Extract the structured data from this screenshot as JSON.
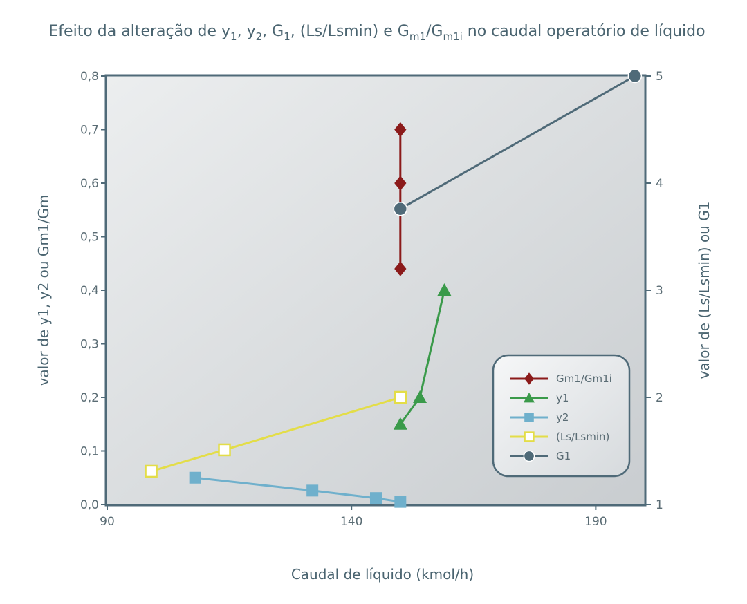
{
  "chart_data": {
    "type": "line",
    "title_parts": [
      {
        "t": "Efeito da alteração de y",
        "sub": false
      },
      {
        "t": "1",
        "sub": true
      },
      {
        "t": ", y",
        "sub": false
      },
      {
        "t": "2",
        "sub": true
      },
      {
        "t": ", G",
        "sub": false
      },
      {
        "t": "1",
        "sub": true
      },
      {
        "t": ", (Ls/Lsmin) e G",
        "sub": false
      },
      {
        "t": "m1",
        "sub": true
      },
      {
        "t": "/G",
        "sub": false
      },
      {
        "t": "m1i",
        "sub": true
      },
      {
        "t": " no caudal operatório de líquido",
        "sub": false
      }
    ],
    "xlabel": "Caudal de líquido (kmol/h)",
    "ylabel_left": "valor de y1, y2 ou Gm1/Gm",
    "ylabel_right": "valor de (Ls/Lsmin) ou G1",
    "xlim": [
      90,
      200
    ],
    "ylim_left": [
      0,
      0.8
    ],
    "ylim_right": [
      1,
      5
    ],
    "x_ticks": [
      {
        "v": 90,
        "label": "90"
      },
      {
        "v": 140,
        "label": "140"
      },
      {
        "v": 190,
        "label": "190"
      }
    ],
    "y_left_ticks": [
      {
        "v": 0.0,
        "label": "0,0"
      },
      {
        "v": 0.1,
        "label": "0,1"
      },
      {
        "v": 0.2,
        "label": "0,2"
      },
      {
        "v": 0.3,
        "label": "0,3"
      },
      {
        "v": 0.4,
        "label": "0,4"
      },
      {
        "v": 0.5,
        "label": "0,5"
      },
      {
        "v": 0.6,
        "label": "0,6"
      },
      {
        "v": 0.7,
        "label": "0,7"
      },
      {
        "v": 0.8,
        "label": "0,8"
      }
    ],
    "y_right_ticks": [
      {
        "v": 1,
        "label": "1"
      },
      {
        "v": 2,
        "label": "2"
      },
      {
        "v": 3,
        "label": "3"
      },
      {
        "v": 4,
        "label": "4"
      },
      {
        "v": 5,
        "label": "5"
      }
    ],
    "legend_position": "lower-right",
    "series": [
      {
        "name": "Gm1/Gm1i",
        "axis": "left",
        "marker": "diamond",
        "color": "#8b1a1a",
        "x": [
          150,
          150,
          150
        ],
        "y": [
          0.7,
          0.6,
          0.44
        ]
      },
      {
        "name": "y1",
        "axis": "left",
        "marker": "triangle",
        "color": "#3a9a4a",
        "x": [
          150,
          154,
          159
        ],
        "y": [
          0.15,
          0.2,
          0.4
        ]
      },
      {
        "name": "y2",
        "axis": "left",
        "marker": "square",
        "color": "#6fb0cc",
        "x": [
          108,
          132,
          145,
          150
        ],
        "y": [
          0.05,
          0.026,
          0.012,
          0.005
        ]
      },
      {
        "name": "(Ls/Lsmin)",
        "axis": "right",
        "marker": "open-square",
        "color": "#e3dd48",
        "x": [
          99,
          114,
          150
        ],
        "y": [
          1.31,
          1.51,
          2.0
        ]
      },
      {
        "name": "G1",
        "axis": "right",
        "marker": "circle",
        "color": "#4f6a78",
        "x": [
          150,
          198
        ],
        "y": [
          3.76,
          5.0
        ]
      }
    ]
  }
}
